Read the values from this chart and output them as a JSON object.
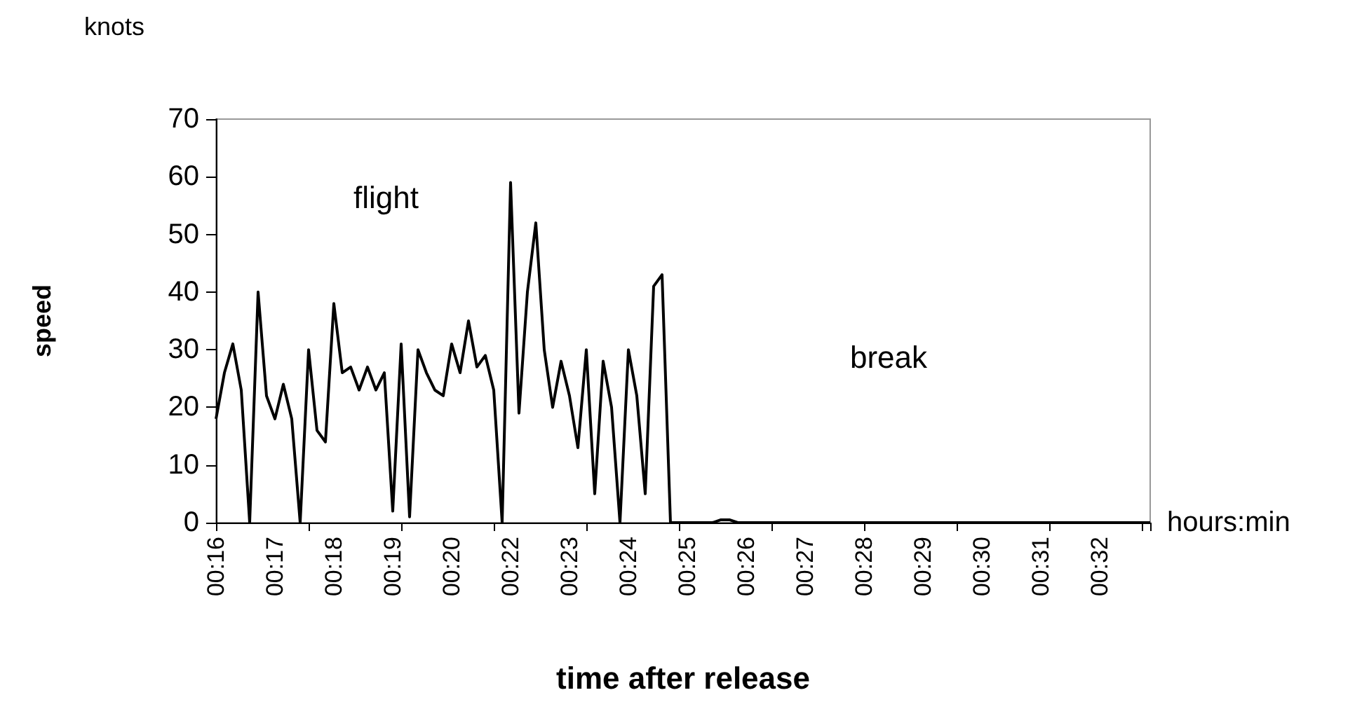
{
  "chart_data": {
    "type": "line",
    "xlabel": "time after release",
    "ylabel": "speed",
    "annotations": [
      "knots",
      "hours:min",
      "flight",
      "break"
    ],
    "categories": [
      "00:16",
      null,
      null,
      null,
      null,
      null,
      null,
      "00:17",
      null,
      null,
      null,
      null,
      null,
      null,
      "00:18",
      null,
      null,
      null,
      null,
      null,
      null,
      "00:19",
      null,
      null,
      null,
      null,
      null,
      null,
      "00:20",
      null,
      null,
      null,
      null,
      null,
      null,
      "00:22",
      null,
      null,
      null,
      null,
      null,
      null,
      "00:23",
      null,
      null,
      null,
      null,
      null,
      null,
      "00:24",
      null,
      null,
      null,
      null,
      null,
      null,
      "00:25",
      null,
      null,
      null,
      null,
      null,
      null,
      "00:26",
      null,
      null,
      null,
      null,
      null,
      null,
      "00:27",
      null,
      null,
      null,
      null,
      null,
      null,
      "00:28",
      null,
      null,
      null,
      null,
      null,
      null,
      "00:29",
      null,
      null,
      null,
      null,
      null,
      null,
      "00:30",
      null,
      null,
      null,
      null,
      null,
      null,
      "00:31",
      null,
      null,
      null,
      null,
      null,
      null,
      "00:32",
      null,
      null,
      null,
      null,
      null,
      null
    ],
    "series": [
      {
        "color": "#000000",
        "values": [
          18,
          26,
          31,
          23,
          0,
          40,
          22,
          18,
          24,
          18,
          0,
          30,
          16,
          14,
          38,
          26,
          27,
          23,
          27,
          23,
          26,
          2,
          31,
          1,
          30,
          26,
          23,
          22,
          31,
          26,
          35,
          27,
          29,
          23,
          0,
          59,
          19,
          40,
          52,
          30,
          20,
          28,
          22,
          13,
          30,
          5,
          28,
          20,
          0,
          30,
          22,
          5,
          41,
          43,
          0,
          0,
          0,
          0,
          0,
          0,
          0.5,
          0.5,
          0,
          0,
          0,
          0,
          0,
          0,
          0,
          0,
          0,
          0,
          0,
          0,
          0,
          0,
          0,
          0,
          0,
          0,
          0,
          0,
          0,
          0,
          0,
          0,
          0,
          0,
          0,
          0,
          0,
          0,
          0,
          0,
          0,
          0,
          0,
          0,
          0,
          0,
          0,
          0,
          0,
          0,
          0,
          0,
          0,
          0,
          0,
          0,
          0,
          0
        ]
      }
    ],
    "ylim": [
      0,
      70
    ],
    "yticks": [
      0,
      10,
      20,
      30,
      40,
      50,
      60,
      70
    ],
    "grid": false,
    "marker": "none",
    "line_style": "solid"
  }
}
